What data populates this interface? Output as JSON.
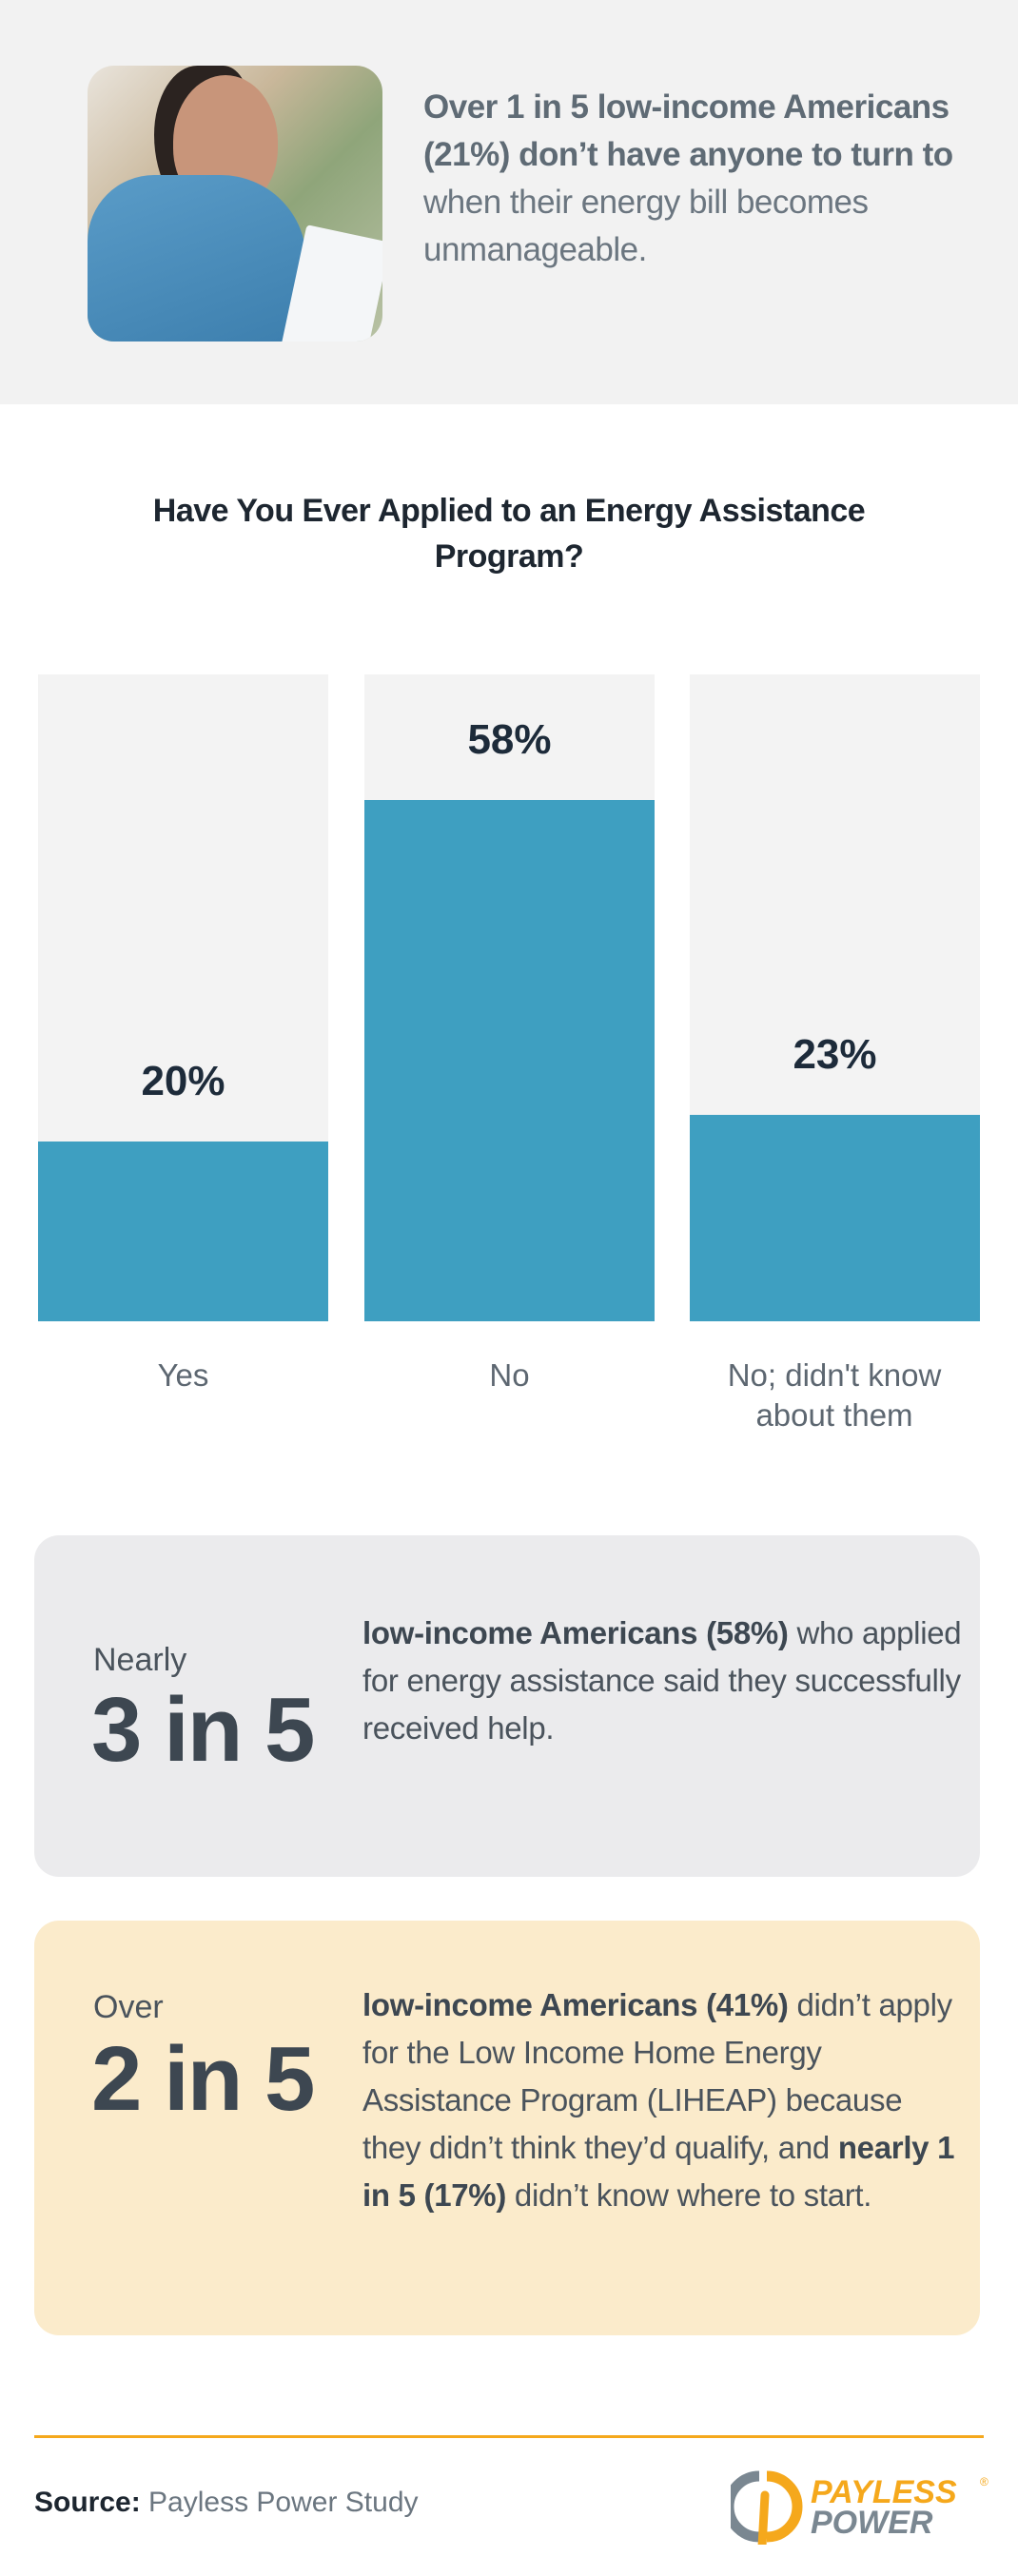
{
  "header": {
    "photo_alt": "woman-holding-energy-bill",
    "stat_bold": "Over 1 in 5 low-income Americans (21%) don’t have anyone to turn to",
    "stat_rest": " when their energy bill becomes unmanageable."
  },
  "chart_data": {
    "type": "bar",
    "title": "Have You Ever Applied to an Energy Assistance Program?",
    "categories": [
      "Yes",
      "No",
      "No; didn't know about them"
    ],
    "values": [
      20,
      58,
      23
    ],
    "value_labels": [
      "20%",
      "58%",
      "23%"
    ],
    "unit": "%",
    "ylim": [
      0,
      72
    ],
    "grid": false,
    "colors": {
      "bar": "#3e9fc1",
      "background": "#f3f3f3"
    }
  },
  "callouts": [
    {
      "pre": "Nearly",
      "big": "3 in 5",
      "bold": "low-income Americans (58%)",
      "rest": " who applied for energy assistance said they successfully received help."
    },
    {
      "pre": "Over",
      "big": "2 in 5",
      "bold": "low-income Americans (41%)",
      "rest": " didn’t apply for the Low Income Home Energy Assistance Program (LIHEAP) because they didn’t think they’d qualify, and ",
      "bold2": "nearly 1 in 5 (17%)",
      "rest2": " didn’t know where to start."
    }
  ],
  "footer": {
    "source_label": "Source:",
    "source_text": " Payless Power Study",
    "logo_line1": "PAYLESS",
    "logo_line2": "POWER",
    "logo_mark": "®"
  },
  "colors": {
    "accent": "#f5a81c",
    "logo_gray": "#7a8791"
  }
}
